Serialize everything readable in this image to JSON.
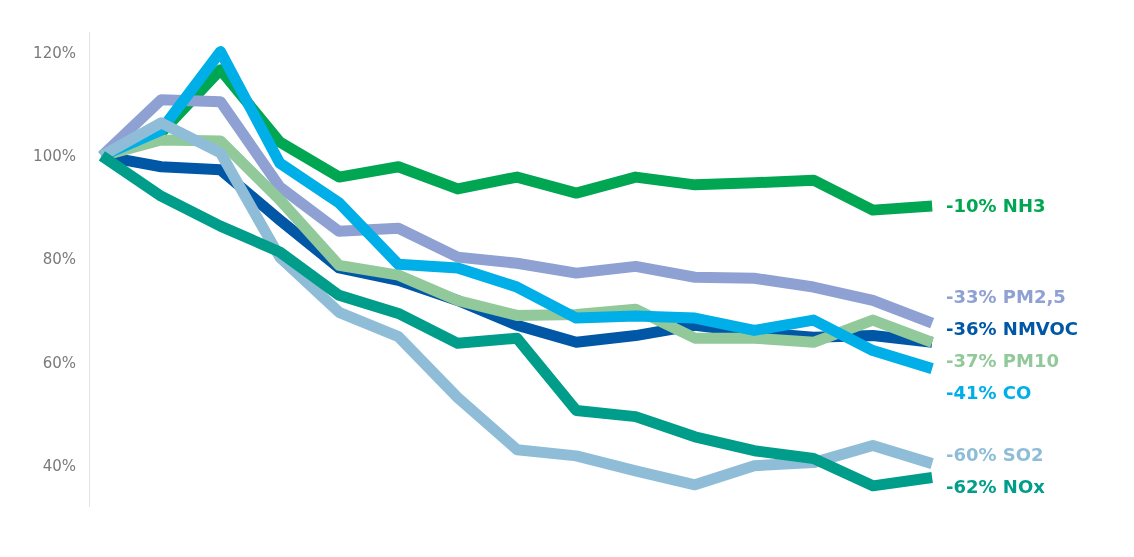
{
  "chart_data": {
    "type": "line",
    "categories": [
      null,
      null,
      null,
      null,
      null,
      null,
      null,
      null,
      null,
      null,
      null,
      null,
      null,
      null,
      null
    ],
    "series": [
      {
        "name": "-10% NH3",
        "color": "#00a651",
        "values": [
          100,
          104.5,
          116.7,
          102.7,
          95.9,
          97.9,
          93.6,
          95.9,
          92.8,
          95.9,
          94.4,
          94.8,
          95.3,
          89.5,
          90.3
        ]
      },
      {
        "name": "-33% PM2,5",
        "color": "#8fa1d2",
        "values": [
          100,
          110.9,
          110.5,
          94,
          85.4,
          86,
          80.4,
          79.2,
          77.3,
          78.6,
          76.5,
          76.3,
          74.6,
          72,
          67.6
        ]
      },
      {
        "name": "-36% NMVOC",
        "color": "#0057a5",
        "values": [
          100,
          97.9,
          97.3,
          87.6,
          78.3,
          75.9,
          72,
          67.2,
          63.9,
          65.2,
          67.2,
          65.8,
          64.9,
          65.2,
          63.9
        ]
      },
      {
        "name": "-37% PM10",
        "color": "#92c99a",
        "values": [
          100,
          103.1,
          102.9,
          91.5,
          78.8,
          76.9,
          72,
          69.1,
          69.3,
          70.3,
          64.7,
          64.7,
          63.9,
          68.2,
          63.9
        ]
      },
      {
        "name": "-41% CO",
        "color": "#00aee8",
        "values": [
          100,
          105,
          120.2,
          98.6,
          90.9,
          79,
          78.3,
          74.6,
          68.6,
          69,
          68.6,
          66.2,
          68.2,
          62.3,
          58.8
        ]
      },
      {
        "name": "-60% SO2",
        "color": "#8fbdd7",
        "values": [
          100,
          106.4,
          100.6,
          80.4,
          69.7,
          65,
          53.2,
          43.1,
          41.9,
          39,
          36.3,
          40,
          40.6,
          43.9,
          40.4
        ]
      },
      {
        "name": "-62% NOx",
        "color": "#009e8a",
        "values": [
          100,
          92.2,
          86.4,
          81.4,
          73,
          69.5,
          63.7,
          64.7,
          50.7,
          49.5,
          45.6,
          42.9,
          41.4,
          36.1,
          37.7
        ]
      }
    ],
    "ylim": [
      32,
      124
    ],
    "yticks": [
      {
        "value": 40,
        "label": "40%"
      },
      {
        "value": 60,
        "label": "60%"
      },
      {
        "value": 80,
        "label": "80%"
      },
      {
        "value": 100,
        "label": "100%"
      },
      {
        "value": 120,
        "label": "120%"
      }
    ],
    "grid": false,
    "legend": false,
    "marker": "none",
    "line_style": "solid",
    "tick_labels": "y"
  }
}
